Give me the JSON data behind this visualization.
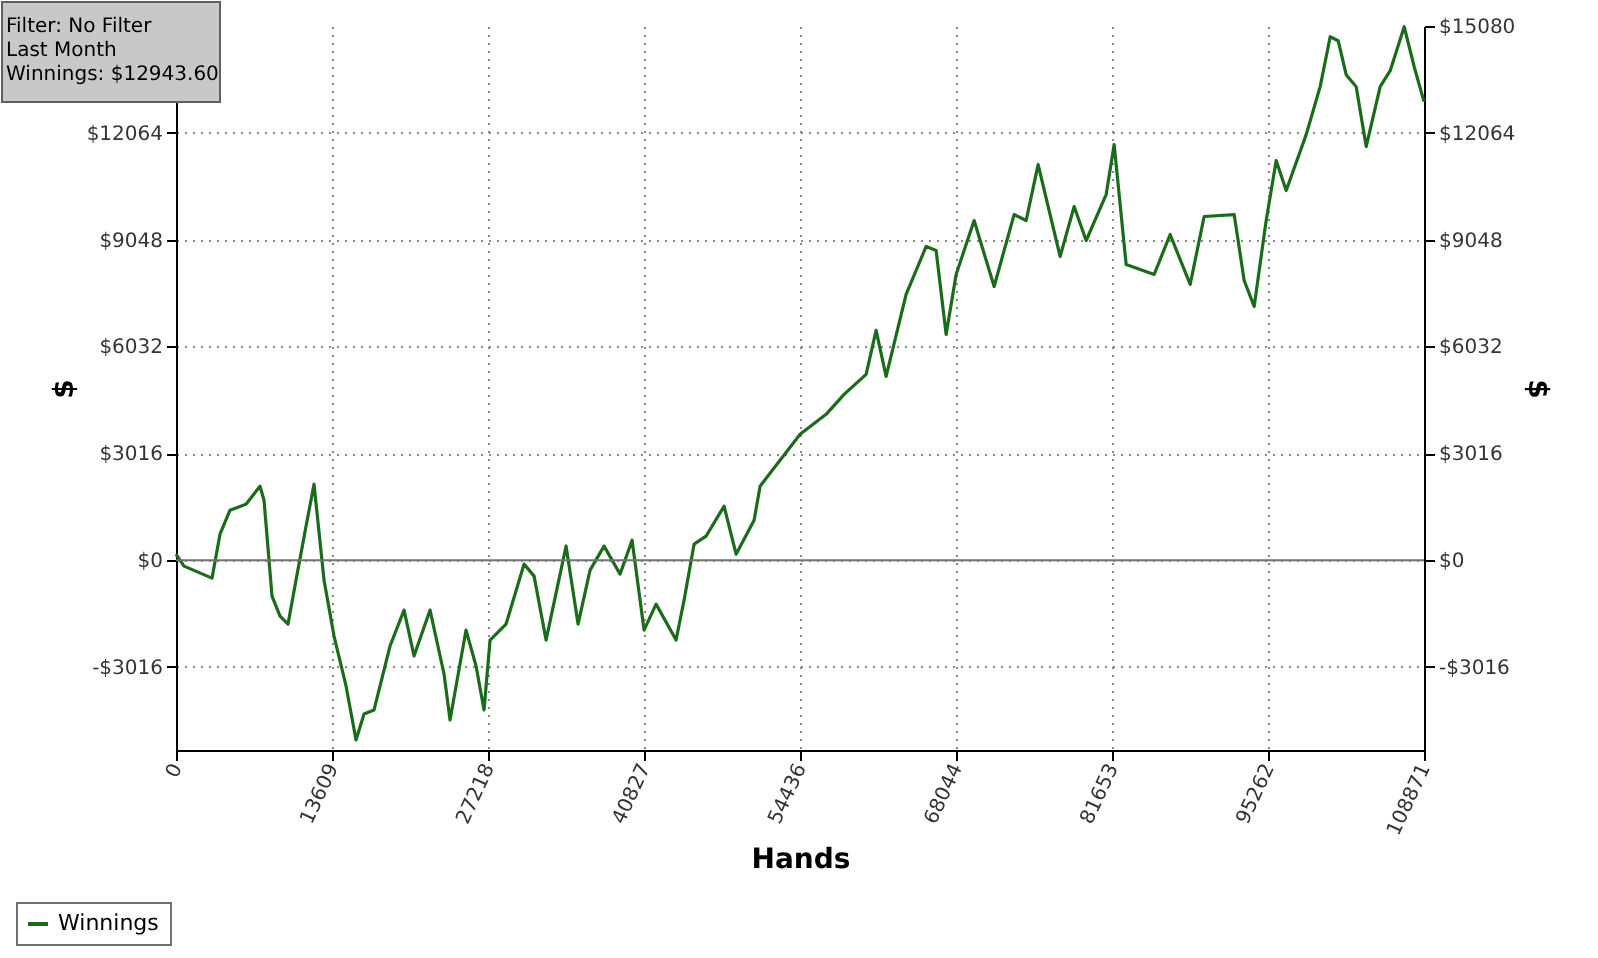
{
  "chart_data": {
    "type": "line",
    "xlabel": "Hands",
    "ylabel": "$",
    "y2label": "$",
    "annotations": [
      "Filter: No Filter",
      "Last Month",
      "Winnings: $12943.60"
    ],
    "x": [
      0,
      698,
      3141,
      3839,
      4712,
      6108,
      7329,
      7678,
      8376,
      9074,
      9772,
      10470,
      11343,
      12041,
      12913,
      13786,
      14833,
      15705,
      16403,
      17276,
      18672,
      19893,
      20766,
      22162,
      23383,
      23907,
      25303,
      26175,
      26873,
      27397,
      28793,
      30363,
      31238,
      32283,
      34028,
      35075,
      36122,
      37343,
      38739,
      39786,
      40833,
      41880,
      43625,
      44323,
      45196,
      46243,
      47813,
      48860,
      50431,
      50954,
      54444,
      56713,
      58283,
      60203,
      61075,
      61948,
      63693,
      65438,
      66310,
      67183,
      68055,
      69626,
      71371,
      73116,
      74163,
      75210,
      77129,
      78351,
      79398,
      81143,
      81841,
      82888,
      85331,
      86727,
      88472,
      89693,
      92311,
      93183,
      94056,
      95103,
      95975,
      96848,
      98593,
      99814,
      100687,
      101385,
      102082,
      102955,
      103828,
      105049,
      105922,
      107143,
      108015,
      108871
    ],
    "series": [
      {
        "name": "Winnings",
        "color": "#1a6b1a",
        "values": [
          169,
          -169,
          -508,
          733,
          1410,
          1579,
          2087,
          1692,
          -1015,
          -1579,
          -1805,
          -564,
          959,
          2143,
          -564,
          -2143,
          -3553,
          -5076,
          -4343,
          -4230,
          -2425,
          -1410,
          -2707,
          -1410,
          -3215,
          -4512,
          -1974,
          -2989,
          -4230,
          -2256,
          -1805,
          -113,
          -451,
          -2256,
          395,
          -1805,
          -282,
          395,
          -395,
          564,
          -1974,
          -1241,
          -2256,
          -1128,
          451,
          677,
          1523,
          169,
          1128,
          2087,
          3553,
          4117,
          4681,
          5245,
          6486,
          5189,
          7501,
          8855,
          8742,
          6373,
          8065,
          9588,
          7727,
          9757,
          9588,
          11167,
          8573,
          9983,
          9024,
          10321,
          11731,
          8347,
          8065,
          9193,
          7783,
          9701,
          9757,
          7896,
          7163,
          9588,
          11280,
          10434,
          12013,
          13367,
          14777,
          14664,
          13705,
          13367,
          11675,
          13367,
          13818,
          15059,
          13931,
          12944
        ]
      }
    ],
    "xlim": [
      0,
      108871
    ],
    "xticks": [
      0,
      13609,
      27218,
      40827,
      54436,
      68044,
      81653,
      95262,
      108871
    ],
    "ylim": [
      -5360,
      15080
    ],
    "yticks": [
      {
        "value": -3016,
        "label": "-$3016"
      },
      {
        "value": 0,
        "label": "$0"
      },
      {
        "value": 3016,
        "label": "$3016"
      },
      {
        "value": 6032,
        "label": "$6032"
      },
      {
        "value": 9048,
        "label": "$9048"
      },
      {
        "value": 12064,
        "label": "$12064"
      }
    ],
    "y2lim": [
      -5360,
      15080
    ],
    "y2ticks": [
      {
        "value": -3016,
        "label": "-$3016"
      },
      {
        "value": 0,
        "label": "$0"
      },
      {
        "value": 3016,
        "label": "$3016"
      },
      {
        "value": 6032,
        "label": "$6032"
      },
      {
        "value": 9048,
        "label": "$9048"
      },
      {
        "value": 12064,
        "label": "$12064"
      },
      {
        "value": 15080,
        "label": "$15080"
      }
    ],
    "ref_lines": [
      {
        "axis": "y",
        "value": 0,
        "color": "#707070"
      }
    ],
    "grid": true,
    "legend": "bottom left",
    "marker": "none",
    "line_style": "solid"
  }
}
